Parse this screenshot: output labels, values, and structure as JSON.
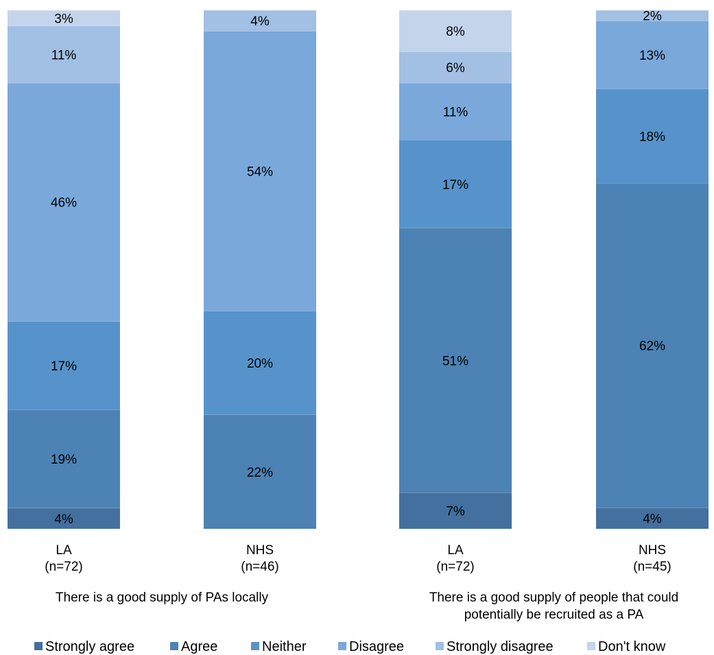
{
  "chart_data": {
    "type": "bar",
    "stacked": true,
    "orientation": "vertical",
    "percent_stacked": true,
    "categories": [
      "LA\n(n=72)",
      "NHS\n(n=46)",
      "LA\n(n=72)",
      "NHS\n(n=45)"
    ],
    "groups": [
      {
        "label": "There is a good supply of PAs locally",
        "categories": [
          0,
          1
        ]
      },
      {
        "label": "There is a good supply of people that could\npotentially be recruited as a PA",
        "categories": [
          2,
          3
        ]
      }
    ],
    "series": [
      {
        "name": "Strongly agree",
        "color": "#43709f",
        "values": [
          4,
          0,
          7,
          4
        ],
        "labels": [
          "4%",
          "",
          "7%",
          "4%"
        ]
      },
      {
        "name": "Agree",
        "color": "#4d82b4",
        "values": [
          19,
          22,
          51,
          62
        ],
        "labels": [
          "19%",
          "22%",
          "51%",
          "62%"
        ]
      },
      {
        "name": "Neither",
        "color": "#5793cb",
        "values": [
          17,
          20,
          17,
          18
        ],
        "labels": [
          "17%",
          "20%",
          "17%",
          "18%"
        ]
      },
      {
        "name": "Disagree",
        "color": "#7aa8da",
        "values": [
          46,
          54,
          11,
          13
        ],
        "labels": [
          "46%",
          "54%",
          "11%",
          "13%"
        ]
      },
      {
        "name": "Strongly disagree",
        "color": "#a2bfe4",
        "values": [
          11,
          4,
          6,
          2
        ],
        "labels": [
          "11%",
          "4%",
          "6%",
          "2%"
        ]
      },
      {
        "name": "Don't know",
        "color": "#c4d4ea",
        "values": [
          3,
          0,
          8,
          0
        ],
        "labels": [
          "3%",
          "",
          "8%",
          ""
        ]
      }
    ],
    "ylim": [
      0,
      100
    ],
    "grid": false,
    "legend_position": "bottom"
  }
}
